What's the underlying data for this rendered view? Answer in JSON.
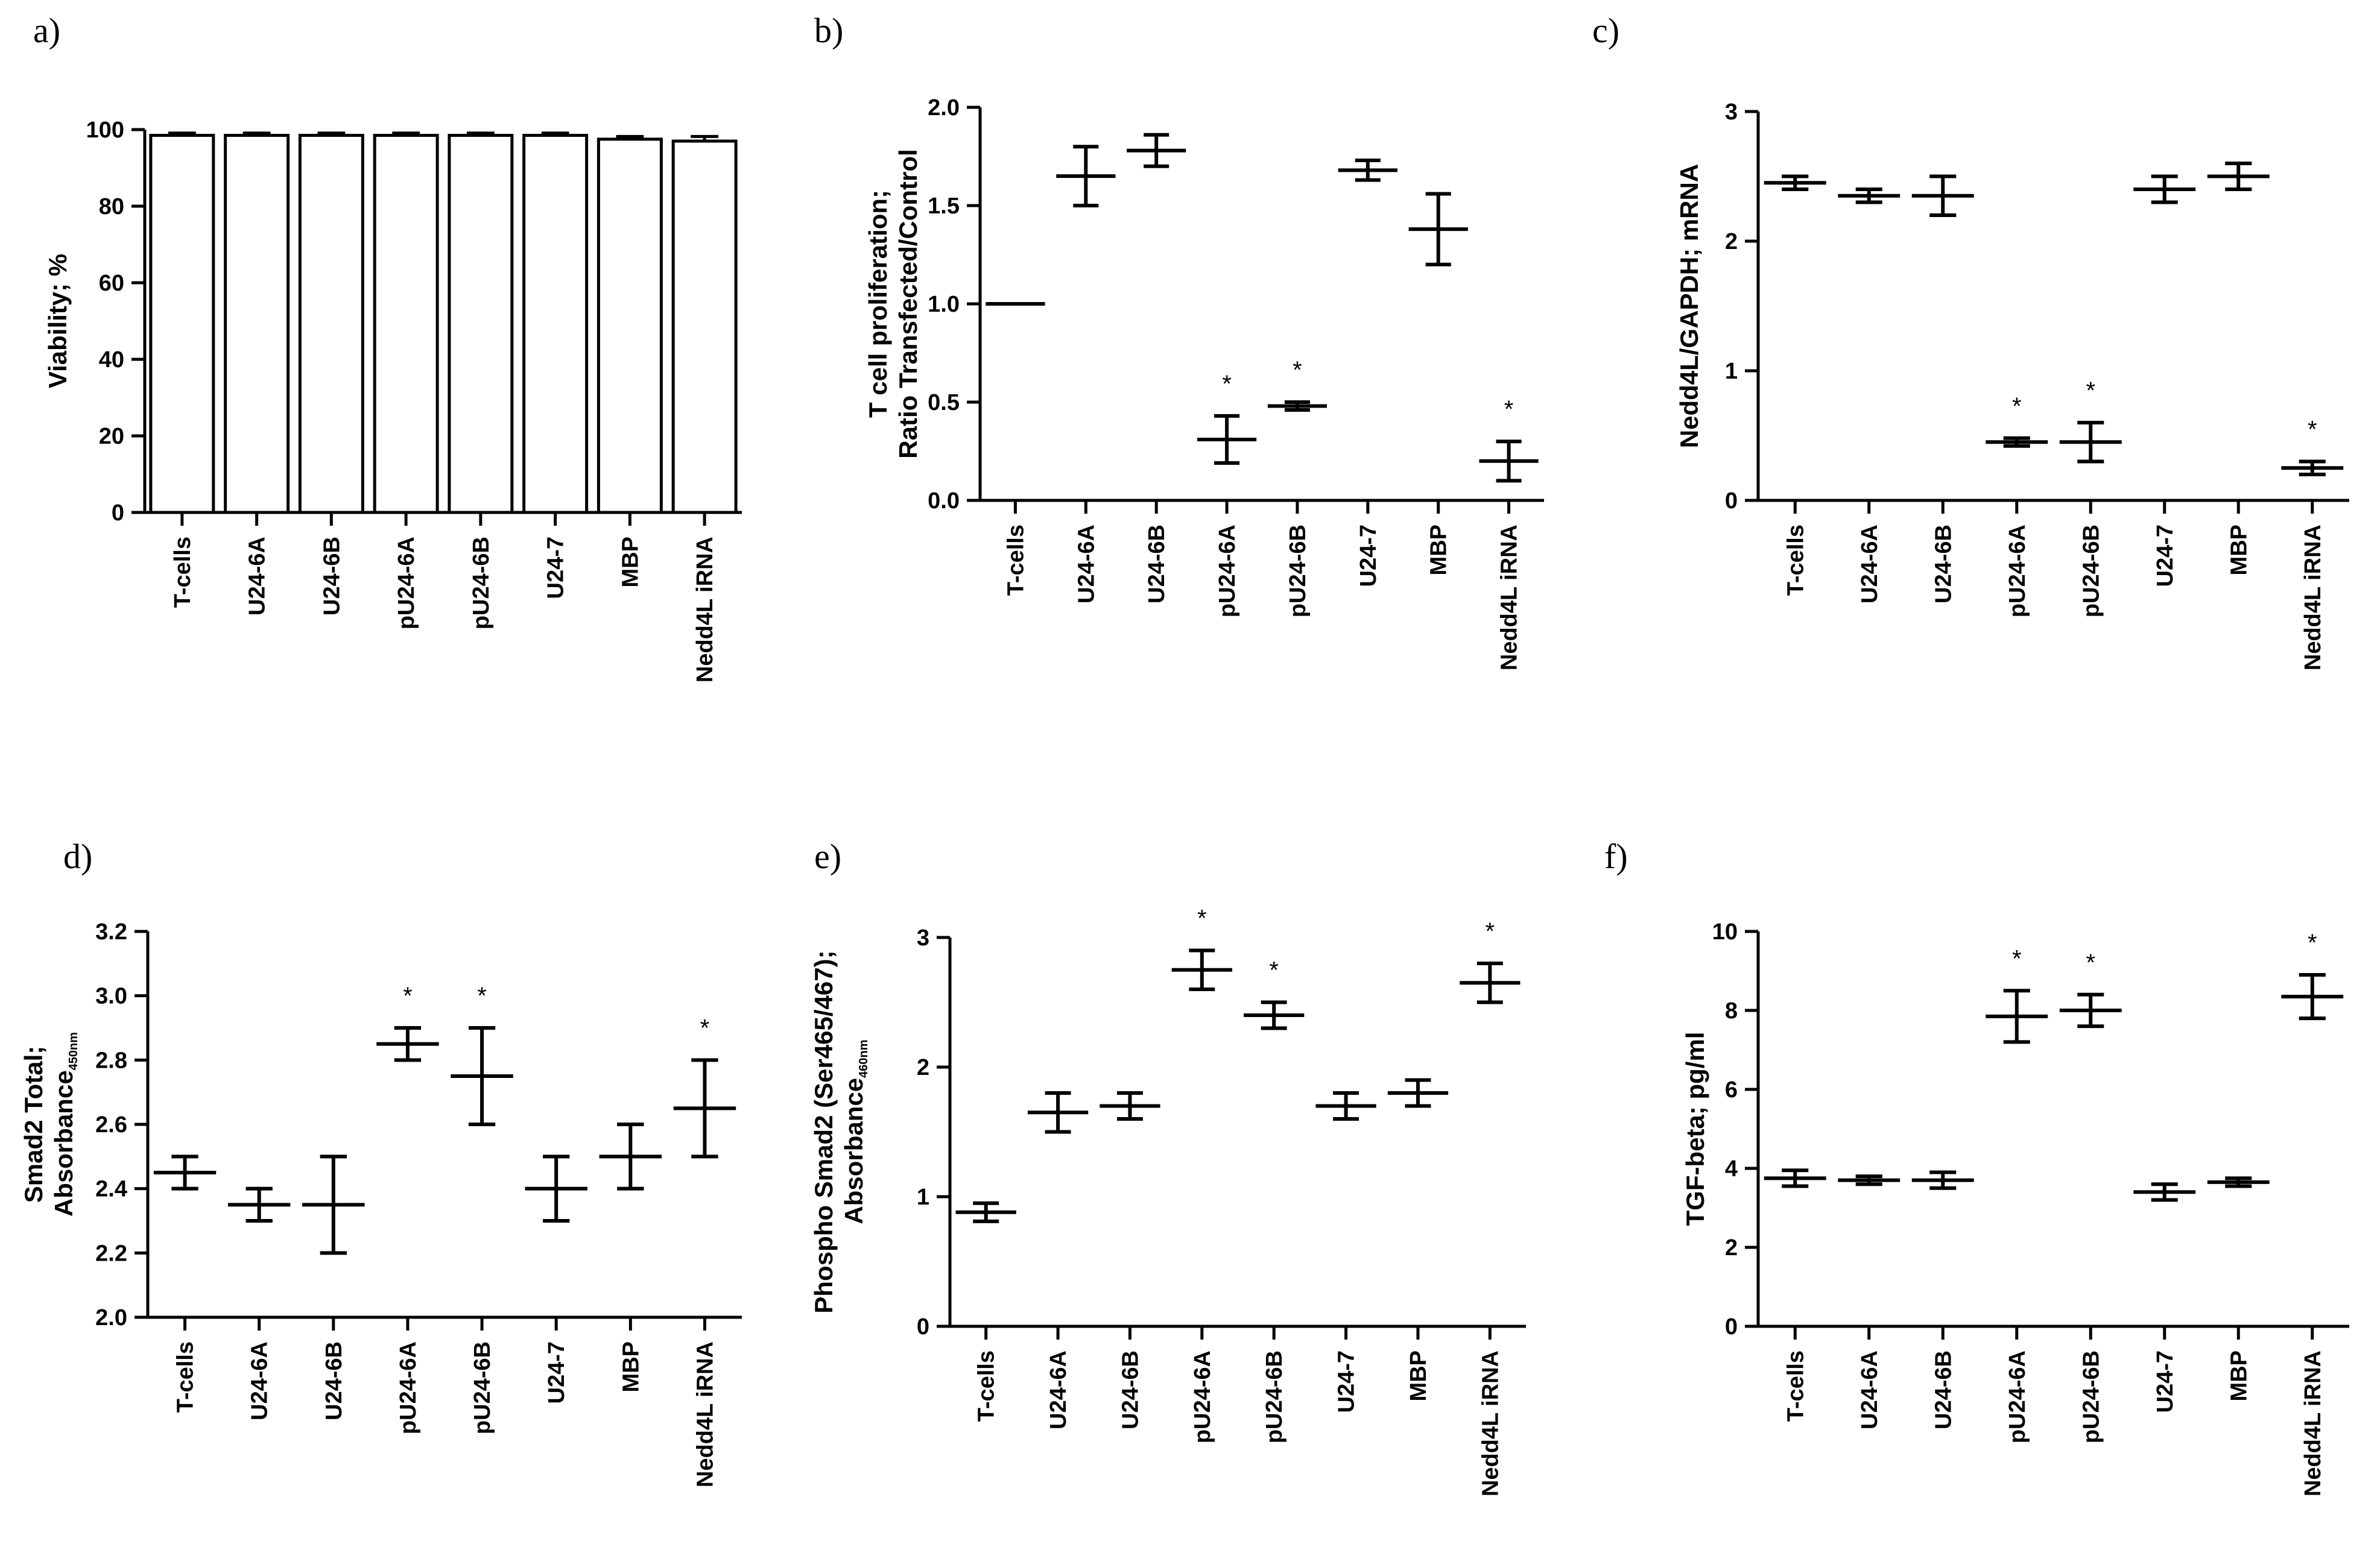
{
  "categories": [
    "T-cells",
    "U24-6A",
    "U24-6B",
    "pU24-6A",
    "pU24-6B",
    "U24-7",
    "MBP",
    "Nedd4L iRNA"
  ],
  "chart_data": [
    {
      "id": "a",
      "panel_label": "a)",
      "type": "bar",
      "ylabel_lines": [
        {
          "text": "Viability; %",
          "sub": ""
        }
      ],
      "ylim": [
        0,
        100
      ],
      "yticks": [
        "0",
        "20",
        "40",
        "60",
        "80",
        "100"
      ],
      "values": [
        98.5,
        98.5,
        98.5,
        98.5,
        98.5,
        98.5,
        97.5,
        97
      ],
      "errors": [
        0.6,
        0.6,
        0.6,
        0.6,
        0.6,
        0.6,
        0.7,
        1.2
      ],
      "significant": [
        false,
        false,
        false,
        false,
        false,
        false,
        false,
        false
      ],
      "star": "*"
    },
    {
      "id": "b",
      "panel_label": "b)",
      "type": "scatter",
      "ylabel_lines": [
        {
          "text": "T cell proliferation;",
          "sub": ""
        },
        {
          "text": "Ratio Transfected/Control",
          "sub": ""
        }
      ],
      "ylim": [
        0,
        2
      ],
      "yticks": [
        "0.0",
        "0.5",
        "1.0",
        "1.5",
        "2.0"
      ],
      "values": [
        1.0,
        1.65,
        1.78,
        0.31,
        0.48,
        1.68,
        1.38,
        0.2
      ],
      "errors": [
        0.0,
        0.15,
        0.08,
        0.12,
        0.02,
        0.05,
        0.18,
        0.1
      ],
      "significant": [
        false,
        false,
        false,
        true,
        true,
        false,
        false,
        true
      ],
      "star": "*"
    },
    {
      "id": "c",
      "panel_label": "c)",
      "type": "scatter",
      "ylabel_lines": [
        {
          "text": "Nedd4L/GAPDH; mRNA",
          "sub": ""
        }
      ],
      "ylim": [
        0,
        3
      ],
      "yticks": [
        "0",
        "1",
        "2",
        "3"
      ],
      "values": [
        2.45,
        2.35,
        2.35,
        0.45,
        0.45,
        2.4,
        2.5,
        0.25
      ],
      "errors": [
        0.05,
        0.05,
        0.15,
        0.03,
        0.15,
        0.1,
        0.1,
        0.05
      ],
      "significant": [
        false,
        false,
        false,
        true,
        true,
        false,
        false,
        true
      ],
      "star": "*"
    },
    {
      "id": "d",
      "panel_label": "d)",
      "type": "scatter",
      "ylabel_lines": [
        {
          "text": "Smad2 Total;",
          "sub": ""
        },
        {
          "text": "Absorbance",
          "sub": "450nm"
        }
      ],
      "ylim": [
        2.0,
        3.2
      ],
      "yticks": [
        "2.0",
        "2.2",
        "2.4",
        "2.6",
        "2.8",
        "3.0",
        "3.2"
      ],
      "values": [
        2.45,
        2.35,
        2.35,
        2.85,
        2.75,
        2.4,
        2.5,
        2.65
      ],
      "errors": [
        0.05,
        0.05,
        0.15,
        0.05,
        0.15,
        0.1,
        0.1,
        0.15
      ],
      "significant": [
        false,
        false,
        false,
        true,
        true,
        false,
        false,
        true
      ],
      "star": "*"
    },
    {
      "id": "e",
      "panel_label": "e)",
      "type": "scatter",
      "ylabel_lines": [
        {
          "text": "Phospho Smad2 (Ser465/467);",
          "sub": ""
        },
        {
          "text": "Absorbance",
          "sub": "460nm"
        }
      ],
      "ylim": [
        0,
        3
      ],
      "yticks": [
        "0",
        "1",
        "2",
        "3"
      ],
      "values": [
        0.88,
        1.65,
        1.7,
        2.75,
        2.4,
        1.7,
        1.8,
        2.65
      ],
      "errors": [
        0.07,
        0.15,
        0.1,
        0.15,
        0.1,
        0.1,
        0.1,
        0.15
      ],
      "significant": [
        false,
        false,
        false,
        true,
        true,
        false,
        false,
        true
      ],
      "star": "*"
    },
    {
      "id": "f",
      "panel_label": "f)",
      "type": "scatter",
      "ylabel_lines": [
        {
          "text": "TGF-beta; pg/ml",
          "sub": ""
        }
      ],
      "ylim": [
        0,
        10
      ],
      "yticks": [
        "0",
        "2",
        "4",
        "6",
        "8",
        "10"
      ],
      "values": [
        3.75,
        3.7,
        3.7,
        7.85,
        8.0,
        3.4,
        3.65,
        8.35
      ],
      "errors": [
        0.2,
        0.1,
        0.2,
        0.65,
        0.4,
        0.2,
        0.1,
        0.55
      ],
      "significant": [
        false,
        false,
        false,
        true,
        true,
        false,
        false,
        true
      ],
      "star": "*"
    }
  ]
}
